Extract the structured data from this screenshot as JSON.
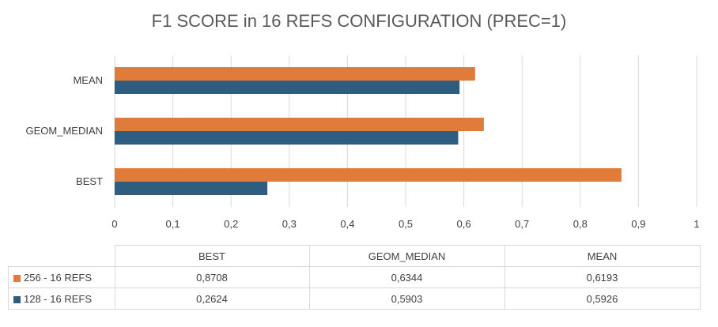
{
  "chart_data": {
    "type": "bar",
    "orientation": "horizontal",
    "title": "F1 SCORE in 16 REFS CONFIGURATION (PREC=1)",
    "categories": [
      "MEAN",
      "GEOM_MEDIAN",
      "BEST"
    ],
    "series": [
      {
        "name": "256 - 16 REFS",
        "color": "#E07B39",
        "values": [
          0.6193,
          0.6344,
          0.8708
        ]
      },
      {
        "name": "128 - 16 REFS",
        "color": "#2E5D80",
        "values": [
          0.5926,
          0.5903,
          0.2624
        ]
      }
    ],
    "xlim": [
      0,
      1
    ],
    "x_ticks": [
      "0",
      "0,1",
      "0,2",
      "0,3",
      "0,4",
      "0,5",
      "0,6",
      "0,7",
      "0,8",
      "0,9",
      "1"
    ],
    "grid": true,
    "data_table": {
      "columns": [
        "BEST",
        "GEOM_MEDIAN",
        "MEAN"
      ],
      "rows": [
        {
          "name": "256 - 16 REFS",
          "values": [
            "0,8708",
            "0,6344",
            "0,6193"
          ]
        },
        {
          "name": "128 - 16 REFS",
          "values": [
            "0,2624",
            "0,5903",
            "0,5926"
          ]
        }
      ]
    }
  }
}
